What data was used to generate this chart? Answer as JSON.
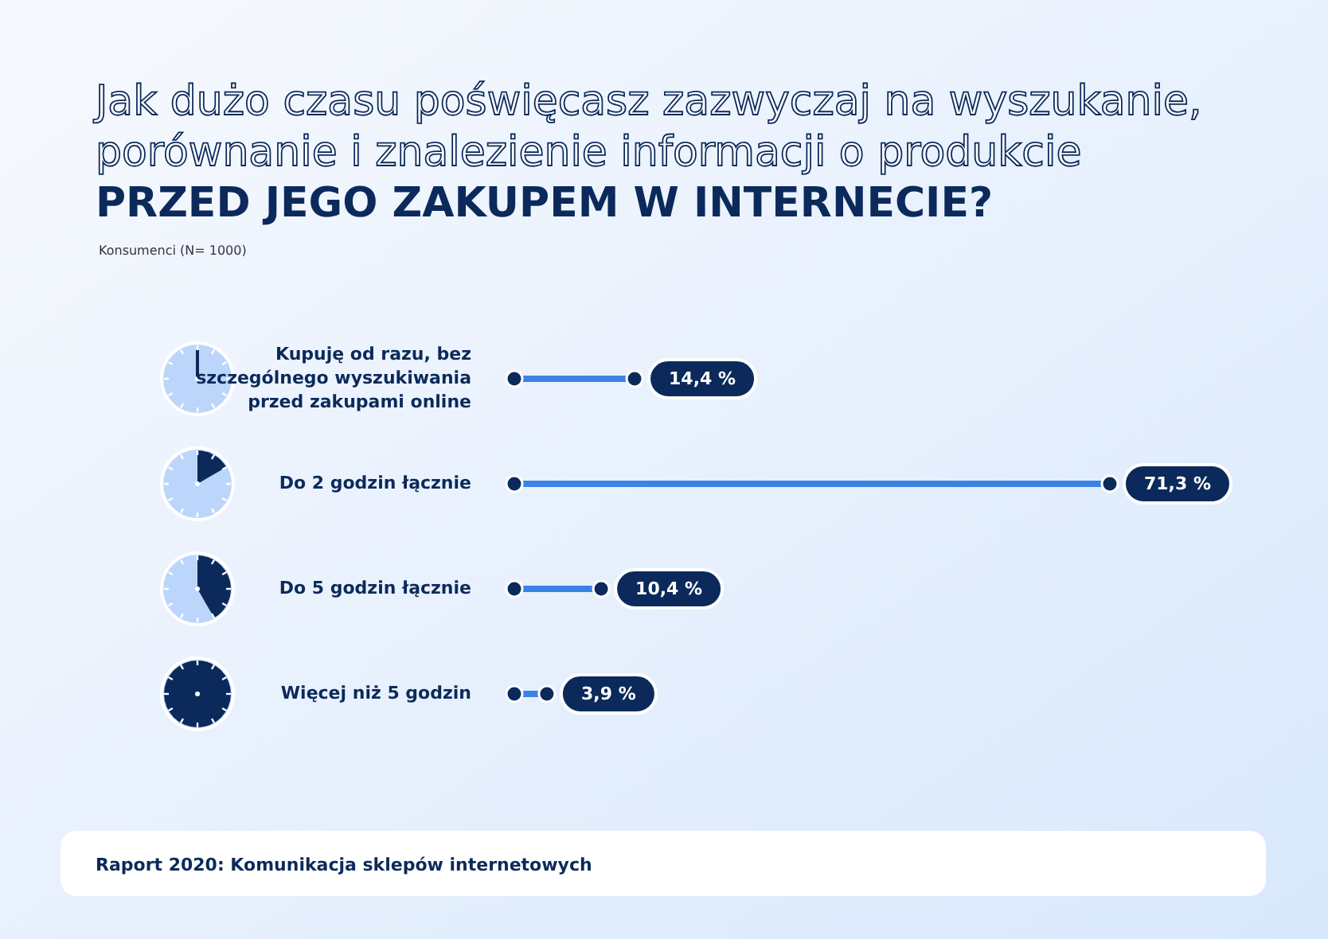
{
  "chart_data": {
    "type": "lollipop",
    "orientation": "horizontal",
    "title": "Jak dużo czasu poświęcasz zazwyczaj na wyszukanie,\nporównanie i znalezienie informacji o produkcie",
    "subtitle": "PRZED JEGO ZAKUPEM W INTERNECIE?",
    "annotations": [
      "Konsumenci (N= 1000)",
      "Raport 2020: Komunikacja sklepów internetowych"
    ],
    "categories": [
      "Kupuję od razu, bez szczególnego wyszukiwania przed zakupami online",
      "Do 2 godzin łącznie",
      "Do 5 godzin łącznie",
      "Więcej niż 5 godzin"
    ],
    "values": [
      14.4,
      71.3,
      10.4,
      3.9
    ],
    "value_labels": [
      "14,4 %",
      "71,3 %",
      "10,4 %",
      "3,9 %"
    ],
    "color": "#0b2a5b"
  }
}
